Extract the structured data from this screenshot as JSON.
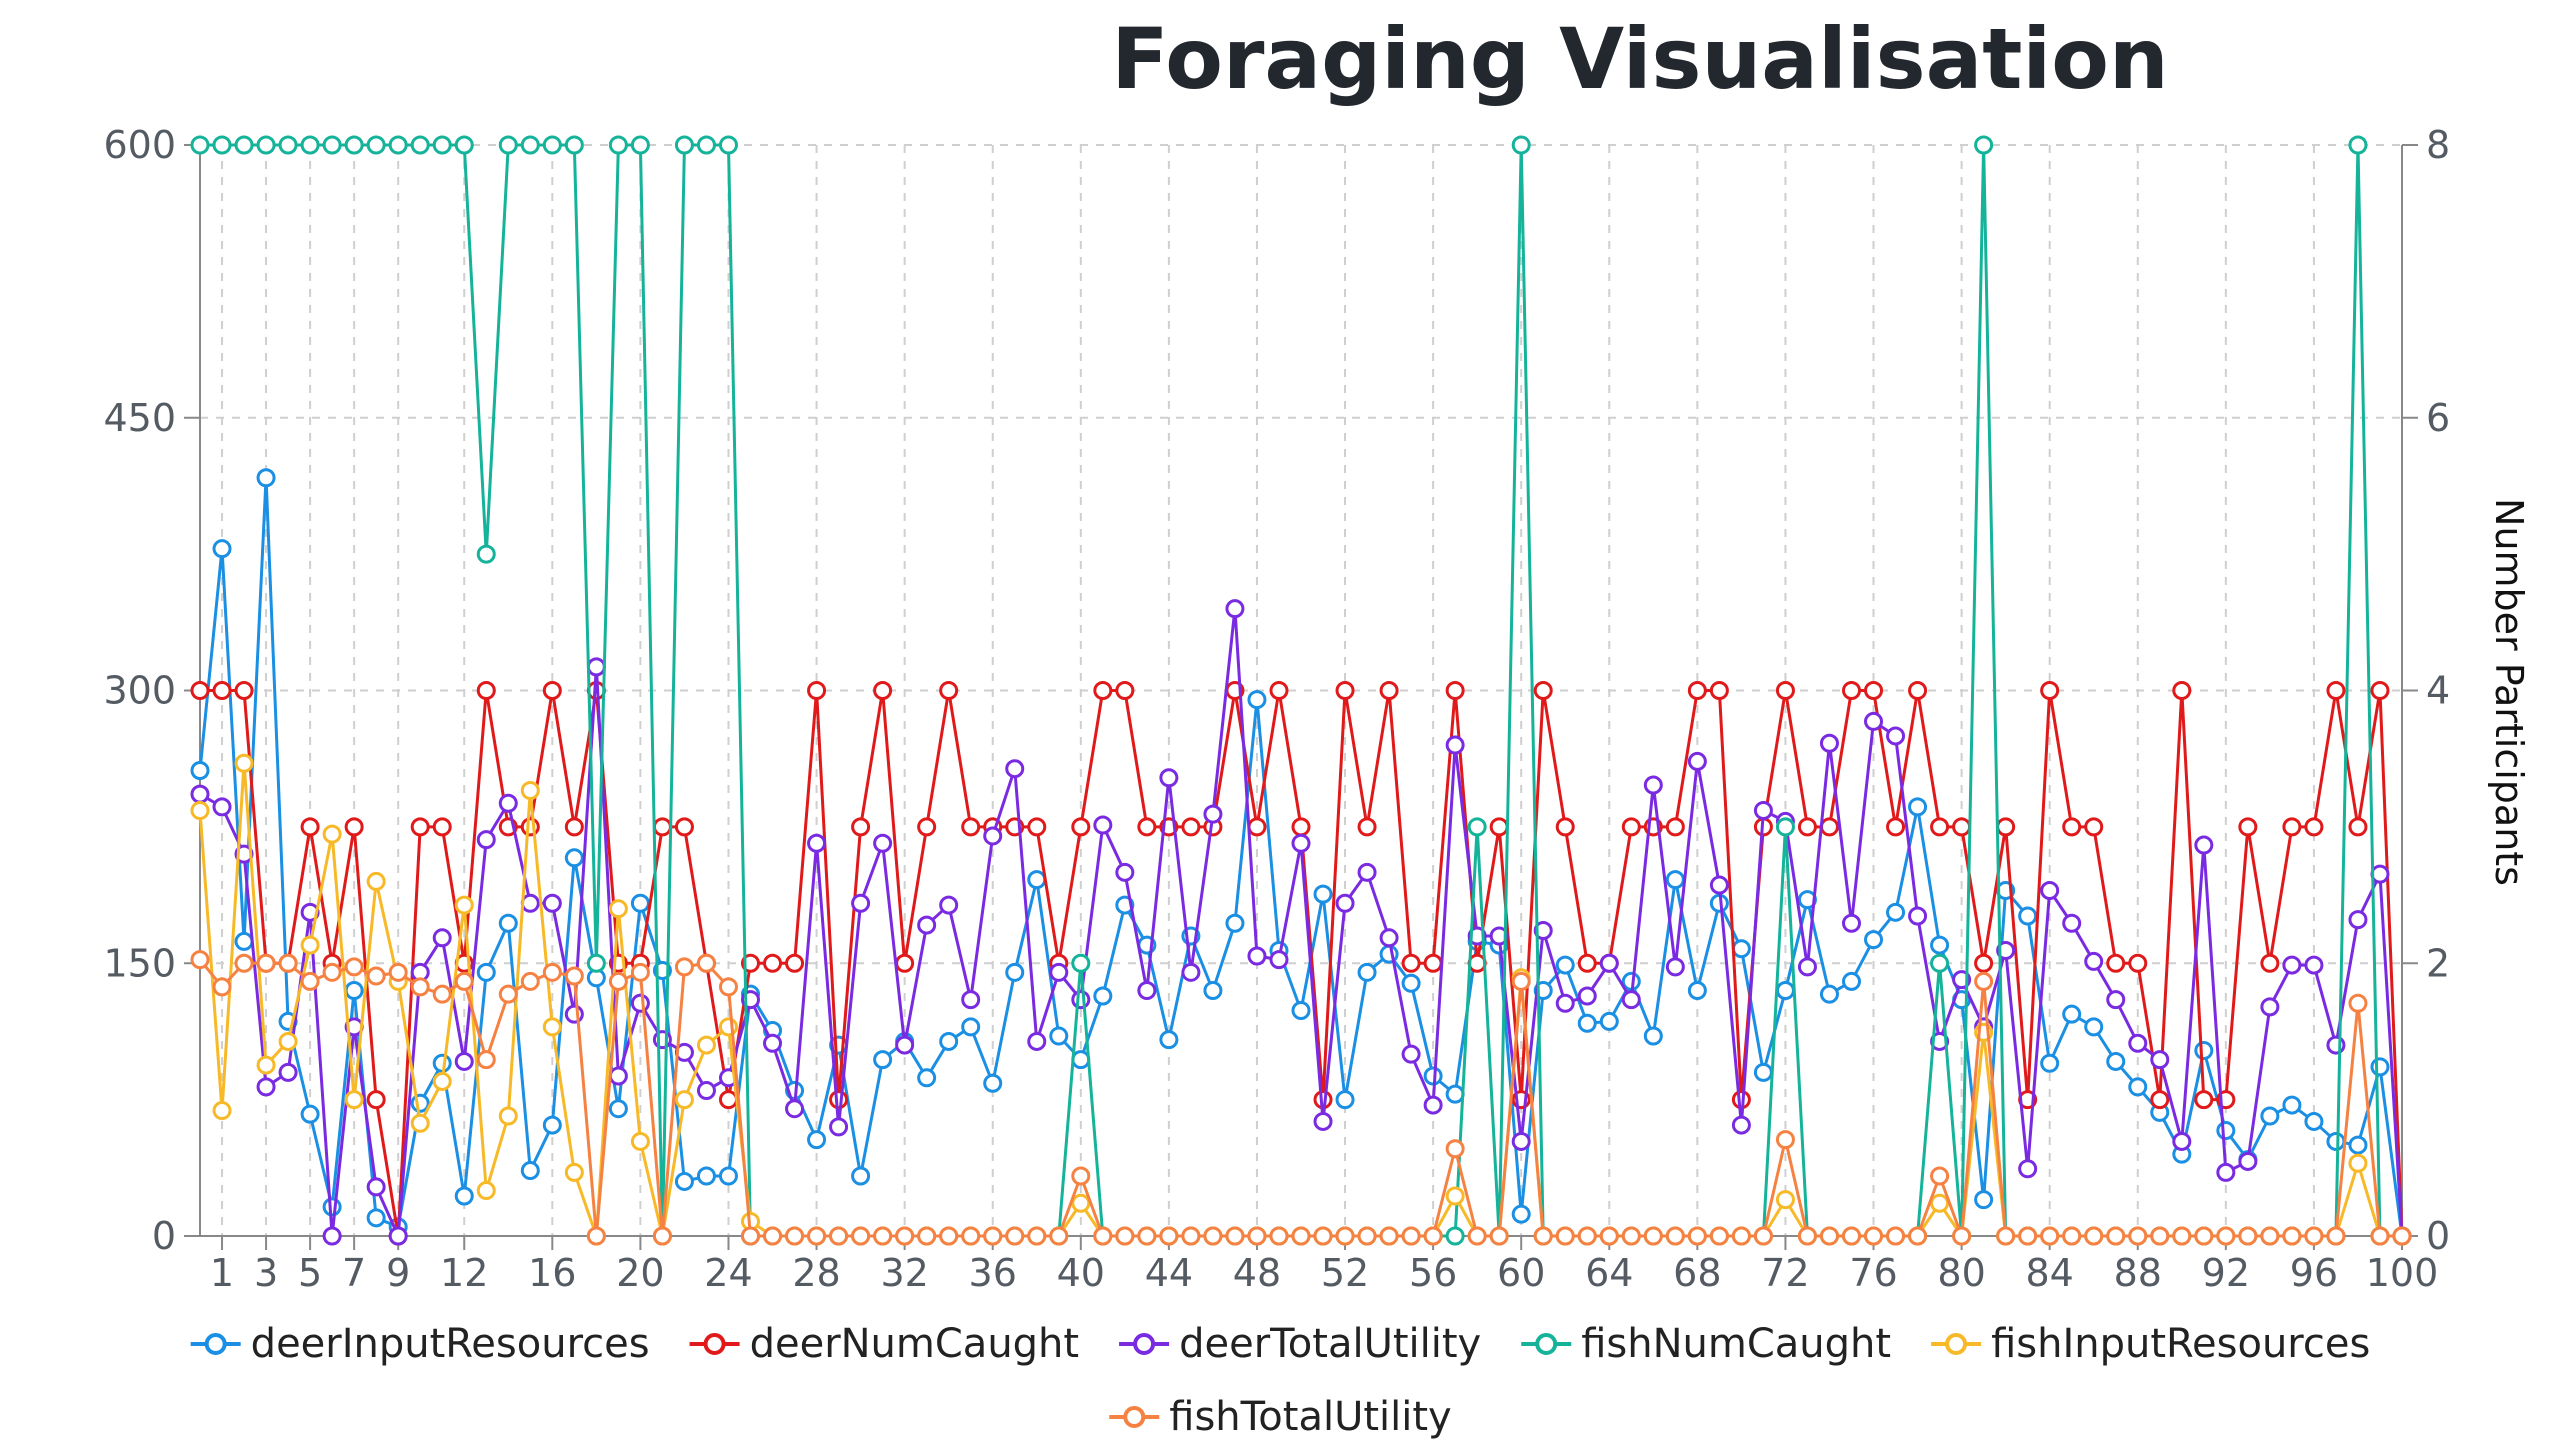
{
  "chart_data": {
    "type": "line",
    "title": "Foraging Visualisation",
    "x": [
      0,
      1,
      2,
      3,
      4,
      5,
      6,
      7,
      8,
      9,
      10,
      11,
      12,
      13,
      14,
      15,
      16,
      17,
      18,
      19,
      20,
      21,
      22,
      23,
      24,
      25,
      26,
      27,
      28,
      29,
      30,
      31,
      32,
      33,
      34,
      35,
      36,
      37,
      38,
      39,
      40,
      41,
      42,
      43,
      44,
      45,
      46,
      47,
      48,
      49,
      50,
      51,
      52,
      53,
      54,
      55,
      56,
      57,
      58,
      59,
      60,
      61,
      62,
      63,
      64,
      65,
      66,
      67,
      68,
      69,
      70,
      71,
      72,
      73,
      74,
      75,
      76,
      77,
      78,
      79,
      80,
      81,
      82,
      83,
      84,
      85,
      86,
      87,
      88,
      89,
      90,
      91,
      92,
      93,
      94,
      95,
      96,
      97,
      98,
      99,
      100
    ],
    "x_ticks": [
      1,
      3,
      5,
      7,
      9,
      12,
      16,
      20,
      24,
      28,
      32,
      36,
      40,
      44,
      48,
      52,
      56,
      60,
      64,
      68,
      72,
      76,
      80,
      84,
      88,
      92,
      96,
      100
    ],
    "left_axis": {
      "ylim": [
        0,
        600
      ],
      "ticks": [
        0,
        150,
        300,
        450,
        600
      ],
      "label": ""
    },
    "right_axis": {
      "ylim": [
        0,
        8
      ],
      "ticks": [
        0,
        2,
        4,
        6,
        8
      ],
      "label": "Number Participants"
    },
    "grid": true,
    "legend_position": "bottom",
    "series": [
      {
        "name": "deerInputResources",
        "color": "#1a8fe3",
        "axis": "left",
        "values": [
          256,
          378,
          162,
          417,
          118,
          67,
          16,
          135,
          10,
          5,
          73,
          95,
          22,
          145,
          172,
          36,
          61,
          208,
          142,
          70,
          183,
          146,
          30,
          33,
          33,
          133,
          113,
          80,
          53,
          105,
          33,
          97,
          107,
          87,
          107,
          115,
          84,
          145,
          196,
          110,
          97,
          132,
          182,
          160,
          108,
          165,
          135,
          172,
          295,
          157,
          124,
          188,
          75,
          145,
          155,
          139,
          88,
          78,
          162,
          160,
          12,
          135,
          149,
          117,
          118,
          140,
          110,
          196,
          135,
          183,
          158,
          90,
          135,
          185,
          133,
          140,
          163,
          178,
          236,
          160,
          130,
          20,
          190,
          176,
          95,
          122,
          115,
          96,
          82,
          68,
          45,
          102,
          58,
          42,
          66,
          72,
          63,
          52,
          50,
          93,
          0
        ]
      },
      {
        "name": "deerNumCaught",
        "color": "#e01a1a",
        "axis": "right",
        "values": [
          4,
          4,
          4,
          2,
          2,
          3,
          2,
          3,
          1,
          0,
          3,
          3,
          2,
          4,
          3,
          3,
          4,
          3,
          4,
          2,
          2,
          3,
          3,
          2,
          1,
          2,
          2,
          2,
          4,
          1,
          3,
          4,
          2,
          3,
          4,
          3,
          3,
          3,
          3,
          2,
          3,
          4,
          4,
          3,
          3,
          3,
          3,
          4,
          3,
          4,
          3,
          1,
          4,
          3,
          4,
          2,
          2,
          4,
          2,
          3,
          1,
          4,
          3,
          2,
          2,
          3,
          3,
          3,
          4,
          4,
          1,
          3,
          4,
          3,
          3,
          4,
          4,
          3,
          4,
          3,
          3,
          2,
          3,
          1,
          4,
          3,
          3,
          2,
          2,
          1,
          4,
          1,
          1,
          3,
          2,
          3,
          3,
          4,
          3,
          4,
          0
        ]
      },
      {
        "name": "deerTotalUtility",
        "color": "#7a2be2",
        "axis": "left",
        "values": [
          243,
          236,
          210,
          82,
          90,
          178,
          0,
          115,
          27,
          0,
          145,
          164,
          96,
          218,
          238,
          183,
          183,
          122,
          313,
          88,
          128,
          108,
          101,
          80,
          87,
          130,
          106,
          70,
          216,
          60,
          183,
          216,
          105,
          171,
          182,
          130,
          220,
          257,
          107,
          145,
          130,
          226,
          200,
          135,
          252,
          145,
          232,
          345,
          154,
          152,
          216,
          63,
          183,
          200,
          164,
          100,
          72,
          270,
          165,
          165,
          52,
          168,
          128,
          132,
          150,
          130,
          248,
          148,
          261,
          193,
          61,
          234,
          228,
          148,
          271,
          172,
          283,
          275,
          176,
          107,
          141,
          115,
          157,
          37,
          190,
          172,
          151,
          130,
          106,
          97,
          52,
          215,
          35,
          41,
          126,
          149,
          149,
          105,
          174,
          199,
          0
        ]
      },
      {
        "name": "fishNumCaught",
        "color": "#14b39a",
        "axis": "right",
        "values": [
          8,
          8,
          8,
          8,
          8,
          8,
          8,
          8,
          8,
          8,
          8,
          8,
          8,
          5,
          8,
          8,
          8,
          8,
          2,
          8,
          8,
          0,
          8,
          8,
          8,
          0,
          0,
          0,
          0,
          0,
          0,
          0,
          0,
          0,
          0,
          0,
          0,
          0,
          0,
          0,
          2,
          0,
          0,
          0,
          0,
          0,
          0,
          0,
          0,
          0,
          0,
          0,
          0,
          0,
          0,
          0,
          0,
          0,
          3,
          0,
          8,
          0,
          0,
          0,
          0,
          0,
          0,
          0,
          0,
          0,
          0,
          0,
          3,
          0,
          0,
          0,
          0,
          0,
          0,
          2,
          0,
          8,
          0,
          0,
          0,
          0,
          0,
          0,
          0,
          0,
          0,
          0,
          0,
          0,
          0,
          0,
          0,
          0,
          8,
          0,
          0
        ]
      },
      {
        "name": "fishInputResources",
        "color": "#f7b928",
        "axis": "left",
        "values": [
          234,
          69,
          260,
          94,
          107,
          160,
          221,
          75,
          195,
          140,
          62,
          85,
          182,
          25,
          66,
          245,
          115,
          35,
          0,
          180,
          52,
          0,
          75,
          105,
          115,
          8,
          0,
          0,
          0,
          0,
          0,
          0,
          0,
          0,
          0,
          0,
          0,
          0,
          0,
          0,
          18,
          0,
          0,
          0,
          0,
          0,
          0,
          0,
          0,
          0,
          0,
          0,
          0,
          0,
          0,
          0,
          0,
          22,
          0,
          0,
          142,
          0,
          0,
          0,
          0,
          0,
          0,
          0,
          0,
          0,
          0,
          0,
          20,
          0,
          0,
          0,
          0,
          0,
          0,
          18,
          0,
          112,
          0,
          0,
          0,
          0,
          0,
          0,
          0,
          0,
          0,
          0,
          0,
          0,
          0,
          0,
          0,
          0,
          40,
          0,
          0
        ]
      },
      {
        "name": "fishTotalUtility",
        "color": "#f58242",
        "axis": "left",
        "values": [
          152,
          137,
          150,
          150,
          150,
          140,
          145,
          148,
          143,
          145,
          137,
          133,
          140,
          97,
          133,
          140,
          145,
          143,
          0,
          140,
          145,
          0,
          148,
          150,
          137,
          0,
          0,
          0,
          0,
          0,
          0,
          0,
          0,
          0,
          0,
          0,
          0,
          0,
          0,
          0,
          33,
          0,
          0,
          0,
          0,
          0,
          0,
          0,
          0,
          0,
          0,
          0,
          0,
          0,
          0,
          0,
          0,
          48,
          0,
          0,
          140,
          0,
          0,
          0,
          0,
          0,
          0,
          0,
          0,
          0,
          0,
          0,
          53,
          0,
          0,
          0,
          0,
          0,
          0,
          33,
          0,
          140,
          0,
          0,
          0,
          0,
          0,
          0,
          0,
          0,
          0,
          0,
          0,
          0,
          0,
          0,
          0,
          0,
          128,
          0,
          0
        ]
      }
    ]
  }
}
